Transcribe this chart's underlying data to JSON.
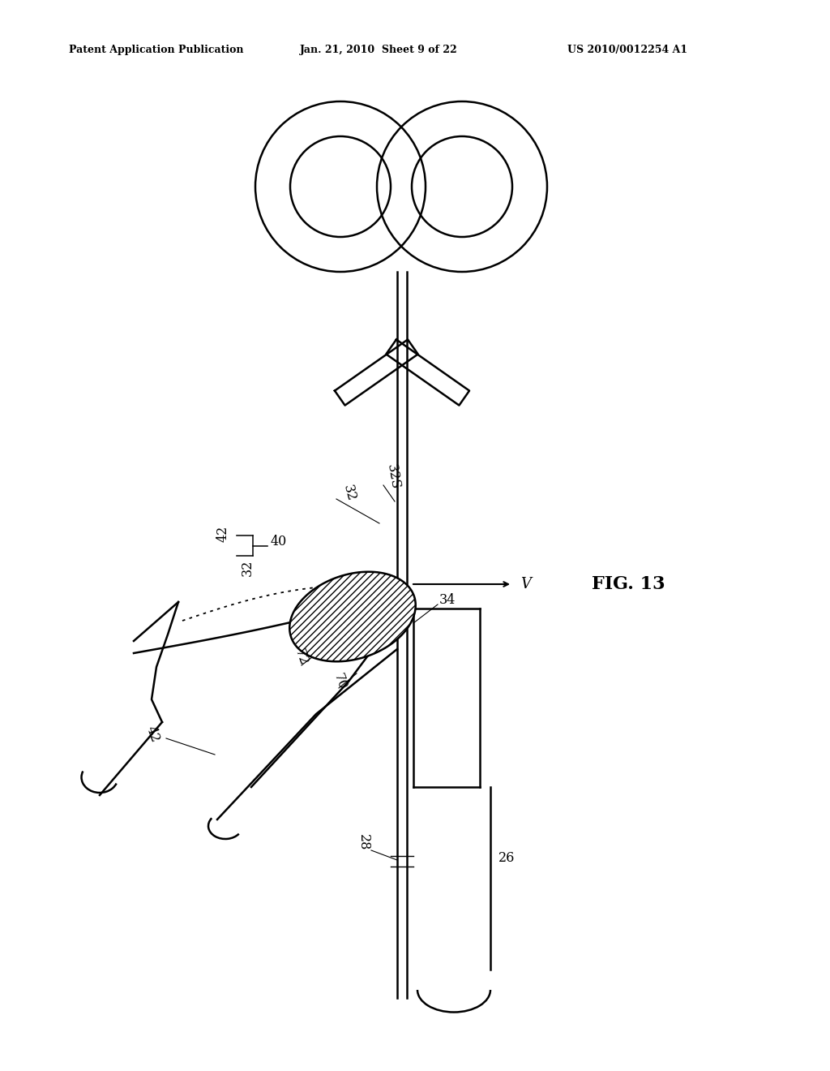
{
  "bg_color": "#ffffff",
  "text_color": "#000000",
  "header_left": "Patent Application Publication",
  "header_mid": "Jan. 21, 2010  Sheet 9 of 22",
  "header_right": "US 2010/0012254 A1",
  "fig_label": "FIG. 13"
}
